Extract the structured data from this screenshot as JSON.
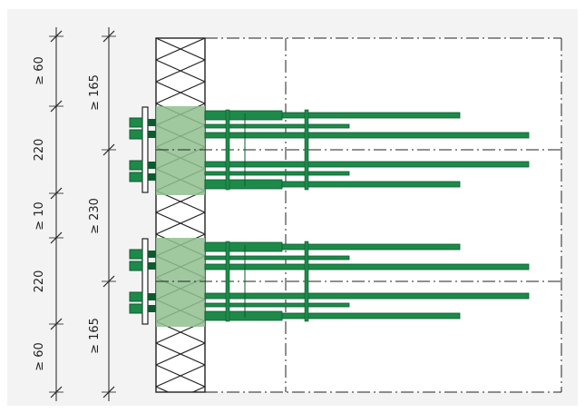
{
  "colors": {
    "background": "#f3f3f3",
    "insulation_fill": "#ffffff",
    "zone_fill": "#8fbf8f",
    "bar_green": "#1d8a4a",
    "bar_dark": "#0e5a2e",
    "line": "#222222"
  },
  "dimensions": {
    "left_column": [
      "≥ 60",
      "220",
      "≥ 10",
      "220",
      "≥ 60"
    ],
    "right_column": [
      "≥ 165",
      "≥ 230",
      "≥ 165"
    ]
  }
}
